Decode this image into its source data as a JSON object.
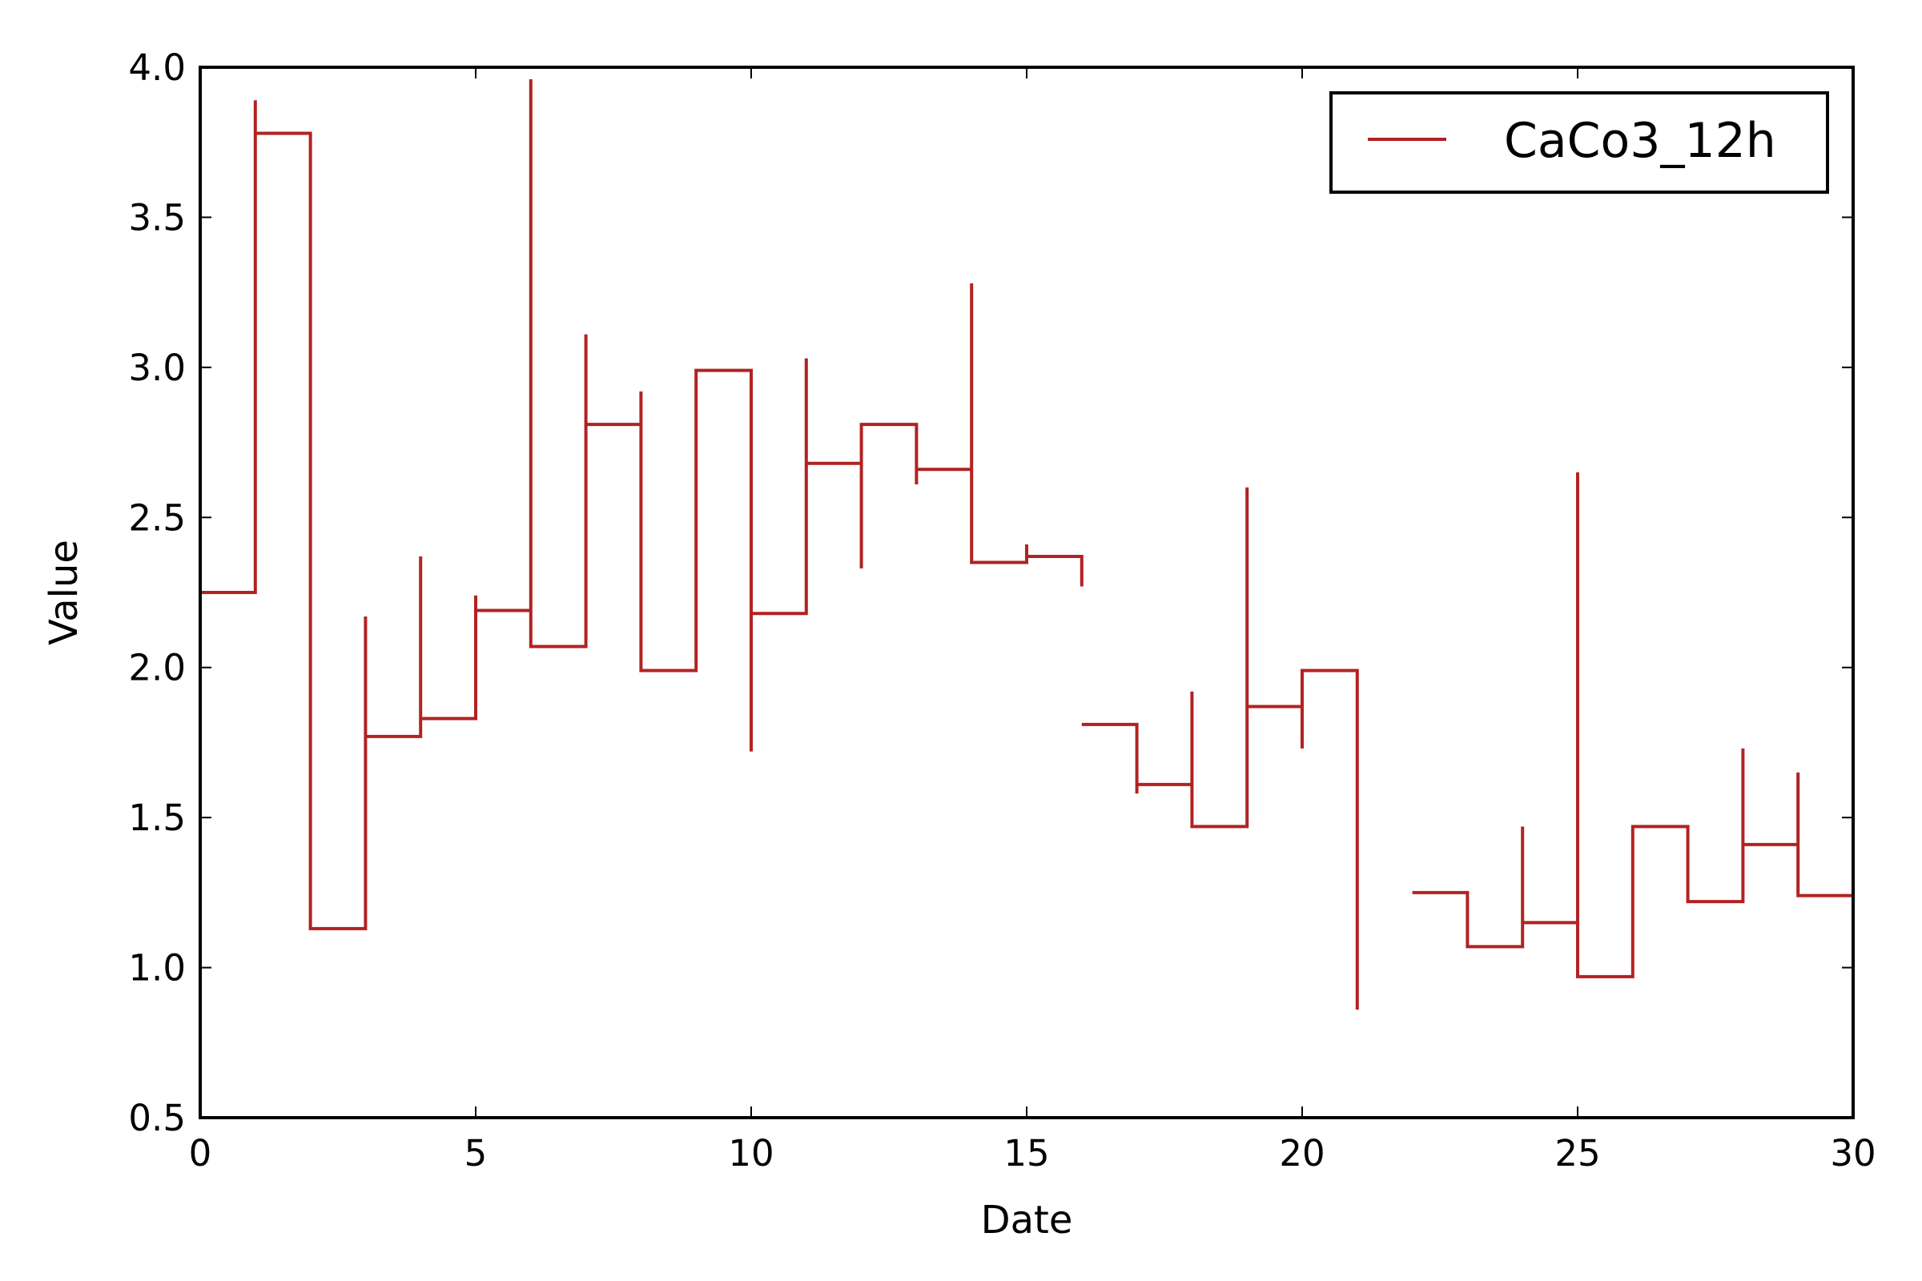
{
  "chart_data": {
    "type": "line",
    "drawstyle": "steps-post",
    "xlabel": "Date",
    "ylabel": "Value",
    "xlim": [
      0,
      30
    ],
    "ylim": [
      0.5,
      4.0
    ],
    "xticks": [
      0,
      5,
      10,
      15,
      20,
      25,
      30
    ],
    "xtick_labels": [
      "0",
      "5",
      "10",
      "15",
      "20",
      "25",
      "30"
    ],
    "yticks": [
      0.5,
      1.0,
      1.5,
      2.0,
      2.5,
      3.0,
      3.5,
      4.0
    ],
    "ytick_labels": [
      "0.5",
      "1.0",
      "1.5",
      "2.0",
      "2.5",
      "3.0",
      "3.5",
      "4.0"
    ],
    "grid": false,
    "legend_position": "top-right",
    "series": [
      {
        "name": "CaCo3_12h",
        "color": "#b22222",
        "points": [
          {
            "x": 0,
            "y": 2.25
          },
          {
            "x": 1,
            "y": 3.78,
            "x_mid": 3.89
          },
          {
            "x": 2,
            "y": 1.13
          },
          {
            "x": 3,
            "y": 1.77,
            "x_mid": 2.17
          },
          {
            "x": 4,
            "y": 1.83,
            "x_mid": 2.37
          },
          {
            "x": 5,
            "y": 2.19,
            "x_mid": 2.24
          },
          {
            "x": 6,
            "y": 2.07,
            "x_mid": 3.96
          },
          {
            "x": 7,
            "y": 2.81,
            "x_mid": 3.11
          },
          {
            "x": 8,
            "y": 1.99,
            "x_mid": 2.92
          },
          {
            "x": 9,
            "y": 2.99
          },
          {
            "x": 10,
            "y": 2.18,
            "x_mid": 1.72
          },
          {
            "x": 11,
            "y": 2.68,
            "x_mid": 3.03
          },
          {
            "x": 12,
            "y": 2.81,
            "x_mid": 2.33
          },
          {
            "x": 13,
            "y": 2.66,
            "x_mid": 2.61
          },
          {
            "x": 14,
            "y": 2.35,
            "x_mid": 3.28
          },
          {
            "x": 15,
            "y": 2.37,
            "x_mid": 2.41
          },
          {
            "x": 16,
            "y": null,
            "x_mid": 2.27
          },
          {
            "x": 16,
            "y": 1.81
          },
          {
            "x": 17,
            "y": 1.61,
            "x_mid": 1.58
          },
          {
            "x": 18,
            "y": 1.47,
            "x_mid": 1.92
          },
          {
            "x": 19,
            "y": 1.87,
            "x_mid": 2.6
          },
          {
            "x": 20,
            "y": 1.99,
            "x_mid": 1.73
          },
          {
            "x": 21,
            "y": null,
            "x_mid": 0.86
          },
          {
            "x": 22,
            "y": 1.25
          },
          {
            "x": 23,
            "y": 1.07
          },
          {
            "x": 24,
            "y": 1.15,
            "x_mid": 1.47
          },
          {
            "x": 25,
            "y": 0.97,
            "x_mid": 2.65
          },
          {
            "x": 26,
            "y": 1.47
          },
          {
            "x": 27,
            "y": 1.22
          },
          {
            "x": 28,
            "y": 1.41,
            "x_mid": 1.73
          },
          {
            "x": 29,
            "y": 1.24,
            "x_mid": 1.65
          },
          {
            "x": 30,
            "y": 1.24
          }
        ]
      }
    ]
  }
}
